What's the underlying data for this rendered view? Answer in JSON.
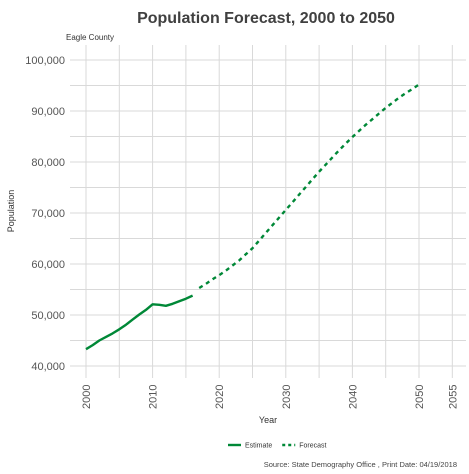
{
  "chart_data": {
    "type": "line",
    "title": "Population Forecast, 2000 to 2050",
    "subtitle": "Eagle County",
    "xlabel": "Year",
    "ylabel": "Population",
    "xlim": [
      2000,
      2055
    ],
    "ylim": [
      40000,
      100000
    ],
    "x_ticks": [
      2000,
      2010,
      2020,
      2030,
      2040,
      2050,
      2055
    ],
    "y_ticks": [
      40000,
      50000,
      60000,
      70000,
      80000,
      90000,
      100000
    ],
    "x_tick_labels": [
      "2000",
      "2010",
      "2020",
      "2030",
      "2040",
      "2050",
      "2055"
    ],
    "y_tick_labels": [
      "40,000",
      "50,000",
      "60,000",
      "70,000",
      "80,000",
      "90,000",
      "100,000"
    ],
    "grid": true,
    "legend_position": "bottom",
    "series": [
      {
        "name": "Estimate",
        "color": "#008837",
        "style": "solid",
        "x": [
          2000,
          2001,
          2002,
          2003,
          2004,
          2005,
          2006,
          2007,
          2008,
          2009,
          2010,
          2011,
          2012,
          2013,
          2014,
          2015,
          2016
        ],
        "y": [
          43300,
          44100,
          45000,
          45700,
          46400,
          47200,
          48100,
          49100,
          50100,
          51000,
          52100,
          52000,
          51800,
          52200,
          52700,
          53200,
          53800
        ]
      },
      {
        "name": "Forecast",
        "color": "#008837",
        "style": "dashed",
        "x": [
          2017,
          2018,
          2019,
          2020,
          2021,
          2022,
          2023,
          2024,
          2025,
          2026,
          2027,
          2028,
          2029,
          2030,
          2031,
          2032,
          2033,
          2034,
          2035,
          2036,
          2037,
          2038,
          2039,
          2040,
          2041,
          2042,
          2043,
          2044,
          2045,
          2046,
          2047,
          2048,
          2049,
          2050
        ],
        "y": [
          55300,
          56100,
          57000,
          57800,
          58700,
          59700,
          60700,
          61900,
          63100,
          64600,
          66100,
          67600,
          69100,
          70600,
          72100,
          73600,
          75100,
          76600,
          78100,
          79500,
          80900,
          82300,
          83600,
          84900,
          86100,
          87300,
          88400,
          89500,
          90600,
          91600,
          92600,
          93500,
          94300,
          95200
        ]
      }
    ]
  },
  "caption": "Source: State Demography Office , Print Date: 04/19/2018"
}
